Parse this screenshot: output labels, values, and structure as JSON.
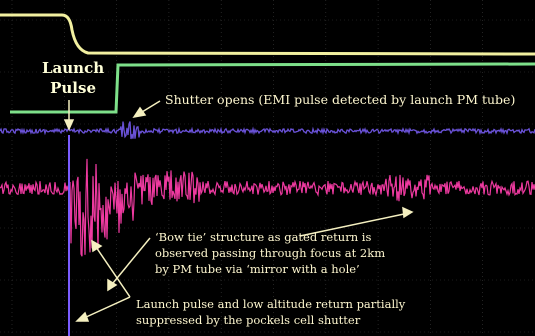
{
  "annotations": {
    "launch_pulse": [
      "Launch",
      "Pulse"
    ],
    "shutter_opens": "Shutter opens (EMI pulse detected by launch PM tube)",
    "bow_tie": [
      "‘Bow tie’ structure as gated return is",
      "observed passing through focus at 2km",
      "by PM tube via ‘mirror with a hole’"
    ],
    "launch_return": [
      "Launch pulse and low altitude return partially",
      "suppressed by the pockels cell shutter"
    ]
  },
  "colors": {
    "background": "#000000",
    "grid": "#3a3a3a",
    "trace_yellow": "#f2f0a0",
    "trace_green": "#7ee08a",
    "trace_purple": "#6a52d8",
    "trace_pink": "#ee3aa0",
    "annotation_text": "#fff8d0",
    "arrow": "#f5f0c0"
  }
}
